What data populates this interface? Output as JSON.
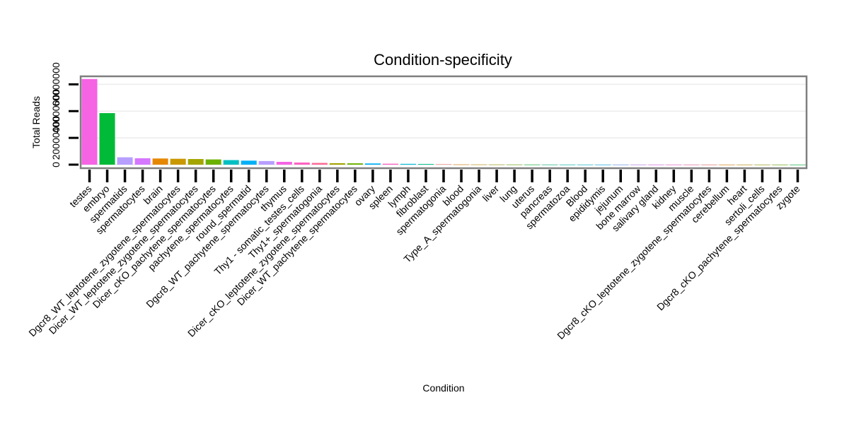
{
  "chart_data": {
    "type": "bar",
    "title": "Condition-specificity",
    "xlabel": "Condition",
    "ylabel": "Total Reads",
    "grid": true,
    "legend": "none",
    "ylim": [
      0,
      66000000
    ],
    "y_ticks": [
      0,
      20000000,
      40000000,
      60000000
    ],
    "y_tick_labels": [
      "0",
      "20000000",
      "40000000",
      "60000000"
    ],
    "categories": [
      "testes",
      "embryo",
      "spermatids",
      "spermatocytes",
      "brain",
      "Dgcr8_WT_leptotene_zygotene_spermatocytes",
      "Dicer_WT_leptotene_zygotene_spermatocytes",
      "Dicer_cKO_pachytene_spermatocytes",
      "pachytene_spermatocytes",
      "round_spermatid",
      "Dgcr8_WT_pachytene_spermatocytes",
      "thymus",
      "Thy1 - somatic_testes_cells",
      "Thy1+_spermatogonia",
      "Dicer_cKO_leptotene_zygotene_spermatocytes",
      "Dicer_WT_pachytene_spermatocytes",
      "ovary",
      "spleen",
      "lymph",
      "fibroblast",
      "spermatogonia",
      "blood",
      "Type_A_spermatogonia",
      "liver",
      "lung",
      "uterus",
      "pancreas",
      "spermatozoa",
      "Blood",
      "epididymis",
      "jejunum",
      "bone marrow",
      "salivary gland",
      "kidney",
      "muscle",
      "Dgcr8_cKO_leptotene_zygotene_spermatocytes",
      "cerebellum",
      "heart",
      "sertoli_cells",
      "Dgcr8_cKO_pachytene_spermatocytes",
      "zygote"
    ],
    "values": [
      64000000,
      38500000,
      5500000,
      4800000,
      4600000,
      4400000,
      4200000,
      3900000,
      3400000,
      3000000,
      2700000,
      2100000,
      1600000,
      1300000,
      1100000,
      1000000,
      900000,
      700000,
      600000,
      500000,
      300000,
      150000,
      120000,
      100000,
      80000,
      60000,
      50000,
      40000,
      30000,
      25000,
      20000,
      15000,
      12000,
      10000,
      8000,
      6000,
      5000,
      4000,
      3000,
      2000,
      1000
    ],
    "colors": [
      "#F564E3",
      "#00BA38",
      "#B79FFF",
      "#D577FF",
      "#E58700",
      "#C99800",
      "#A3A500",
      "#6BB100",
      "#00BFC4",
      "#00B0F6",
      "#B79FFF",
      "#F564E3",
      "#FF61C3",
      "#FF6B97",
      "#A3A500",
      "#6BB100",
      "#00B0F6",
      "#FF61C3",
      "#00BCD8",
      "#00C08B",
      "#F8766D",
      "#E58700",
      "#C99800",
      "#A3A500",
      "#6BB100",
      "#00BA38",
      "#00BF7D",
      "#00C0AF",
      "#00BCD8",
      "#00B0F6",
      "#619CFF",
      "#B983FF",
      "#E76BF3",
      "#FD61D1",
      "#FF67A4",
      "#F8766D",
      "#E58700",
      "#C99800",
      "#A3A500",
      "#6BB100",
      "#00BA38"
    ]
  }
}
